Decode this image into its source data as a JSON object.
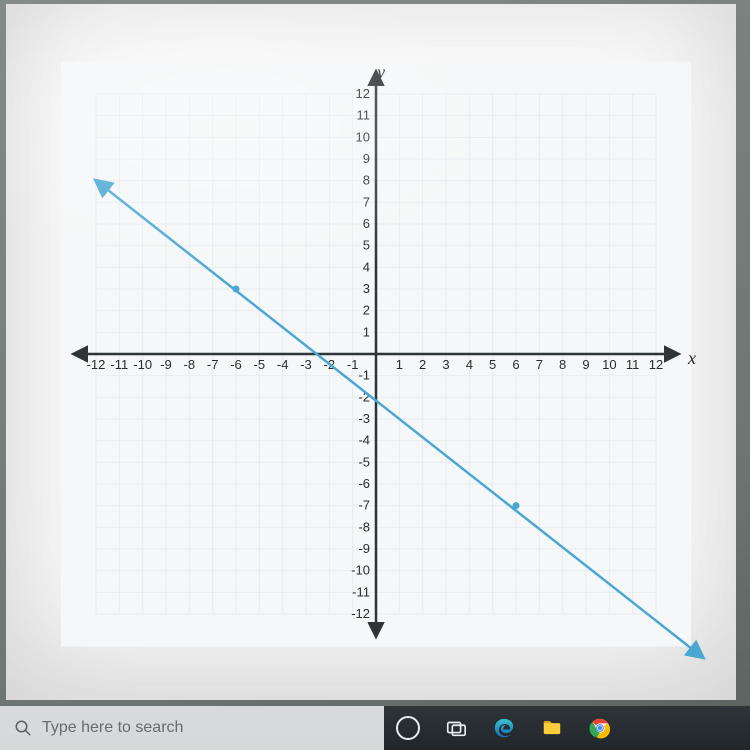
{
  "chart": {
    "type": "line",
    "background_color": "#fbfbfb",
    "plot_bg_tint": "#f5f7f8",
    "grid_color": "#e7ecef",
    "grid_width": 1,
    "axis_color": "#2f3436",
    "axis_width": 2.5,
    "xlabel": "x",
    "ylabel": "y",
    "label_fontsize": 18,
    "xlim": [
      -12,
      12
    ],
    "ylim": [
      -12,
      12
    ],
    "xtick_step": 1,
    "ytick_step": 1,
    "tick_label_fontsize": 13,
    "tick_label_color": "#2a2d2e",
    "grid_step": 1,
    "x_ticks": [
      -12,
      -11,
      -10,
      -9,
      -8,
      -7,
      -6,
      -5,
      -4,
      -3,
      -2,
      -1,
      1,
      2,
      3,
      4,
      5,
      6,
      7,
      8,
      9,
      10,
      11,
      12
    ],
    "y_ticks": [
      12,
      11,
      10,
      9,
      8,
      7,
      6,
      5,
      4,
      3,
      2,
      1,
      -1,
      -2,
      -3,
      -4,
      -5,
      -6,
      -7,
      -8,
      -9,
      -10,
      -11,
      -12
    ],
    "line": {
      "x1": -12,
      "y1": 8,
      "x2": 14,
      "y2": -14,
      "color": "#4aa7d1",
      "width": 2.5,
      "arrow_size": 8
    },
    "points": [
      {
        "x": -6,
        "y": 3,
        "color": "#4aa7d1",
        "r": 3.5
      },
      {
        "x": 6,
        "y": -7,
        "color": "#4aa7d1",
        "r": 3.5
      }
    ],
    "grid_rect": {
      "x_from": -13.5,
      "x_to": 13.5,
      "y_from": -13.5,
      "y_to": 13.5
    }
  },
  "taskbar": {
    "search_placeholder": "Type here to search",
    "bg_from": "#2e3438",
    "bg_to": "#20262a",
    "searchbox_bg": "rgba(230,232,233,0.92)",
    "search_text_color": "#666c70",
    "icons": {
      "cortana": {
        "ring_color": "#e8eef2"
      },
      "taskview": {
        "color": "#e8eef2"
      },
      "edge": {
        "top": "#39c2c8",
        "bottom": "#1271c4"
      },
      "explorer": {
        "folder": "#ffcd3a",
        "tab": "#e3a917"
      },
      "chrome": {
        "red": "#ea4335",
        "yellow": "#fbbc05",
        "green": "#34a853",
        "blue": "#4285f4",
        "white": "#ffffff"
      }
    }
  }
}
